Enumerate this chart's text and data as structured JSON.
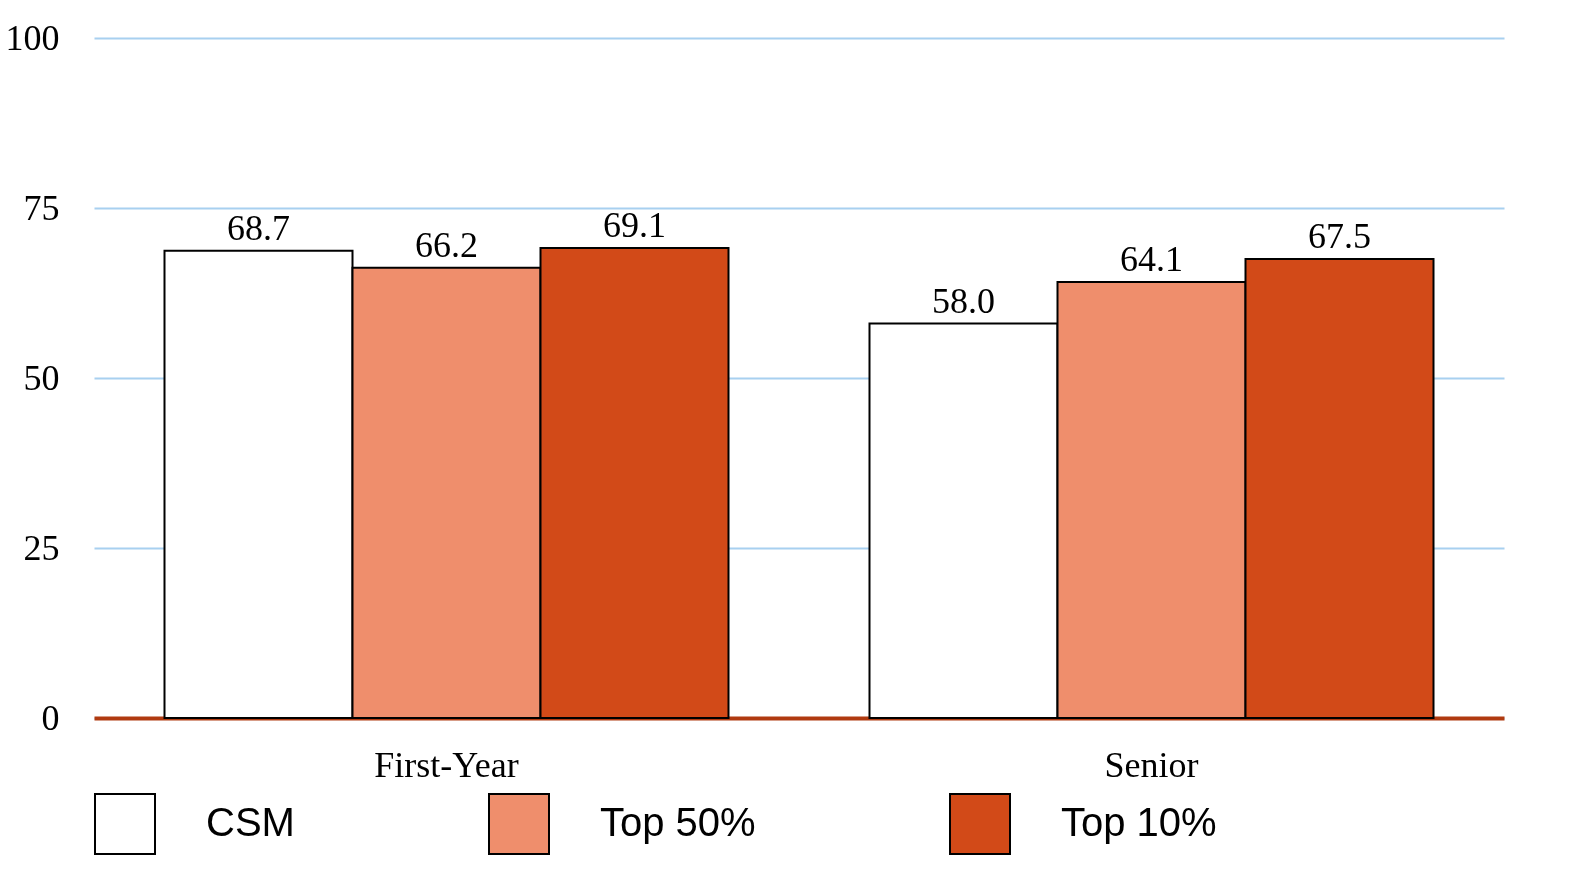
{
  "chart_data": {
    "type": "bar",
    "categories": [
      "First-Year",
      "Senior"
    ],
    "series": [
      {
        "name": "CSM",
        "color": "#ffffff",
        "values": [
          68.7,
          58.0
        ],
        "value_labels": [
          "68.7",
          "58.0"
        ]
      },
      {
        "name": "Top 50%",
        "color": "#ef8e6c",
        "values": [
          66.2,
          64.1
        ],
        "value_labels": [
          "66.2",
          "64.1"
        ]
      },
      {
        "name": "Top 10%",
        "color": "#d24a18",
        "values": [
          69.1,
          67.5
        ],
        "value_labels": [
          "69.1",
          "67.5"
        ]
      }
    ],
    "ylim": [
      0,
      100
    ],
    "yticks": [
      0,
      25,
      50,
      75,
      100
    ],
    "grid": "y",
    "legend": "bottom"
  }
}
